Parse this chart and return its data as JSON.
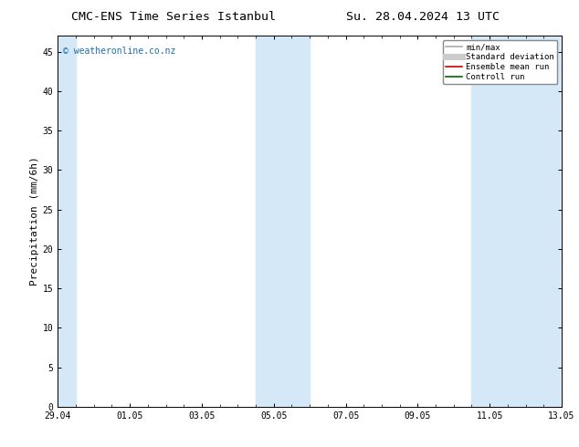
{
  "title_left": "CMC-ENS Time Series Istanbul",
  "title_right": "Su. 28.04.2024 13 UTC",
  "ylabel": "Precipitation (mm/6h)",
  "ylim": [
    0,
    47
  ],
  "yticks": [
    0,
    5,
    10,
    15,
    20,
    25,
    30,
    35,
    40,
    45
  ],
  "xtick_labels": [
    "29.04",
    "01.05",
    "03.05",
    "05.05",
    "07.05",
    "09.05",
    "11.05",
    "13.05"
  ],
  "xtick_positions": [
    0,
    2,
    4,
    6,
    8,
    10,
    12,
    14
  ],
  "xlim": [
    0,
    14
  ],
  "shaded_regions": [
    [
      0.0,
      0.5
    ],
    [
      5.5,
      7.0
    ],
    [
      11.5,
      12.5
    ],
    [
      12.5,
      14.0
    ]
  ],
  "band_color": "#d4e8f7",
  "watermark_text": "© weatheronline.co.nz",
  "watermark_color": "#1a6fad",
  "legend_items": [
    {
      "label": "min/max",
      "color": "#aaaaaa",
      "lw": 1.2,
      "ls": "-"
    },
    {
      "label": "Standard deviation",
      "color": "#cccccc",
      "lw": 5,
      "ls": "-"
    },
    {
      "label": "Ensemble mean run",
      "color": "#cc0000",
      "lw": 1.2,
      "ls": "-"
    },
    {
      "label": "Controll run",
      "color": "#006600",
      "lw": 1.2,
      "ls": "-"
    }
  ],
  "bg_color": "#ffffff",
  "title_fontsize": 9.5,
  "tick_fontsize": 7,
  "legend_fontsize": 6.5,
  "ylabel_fontsize": 8
}
